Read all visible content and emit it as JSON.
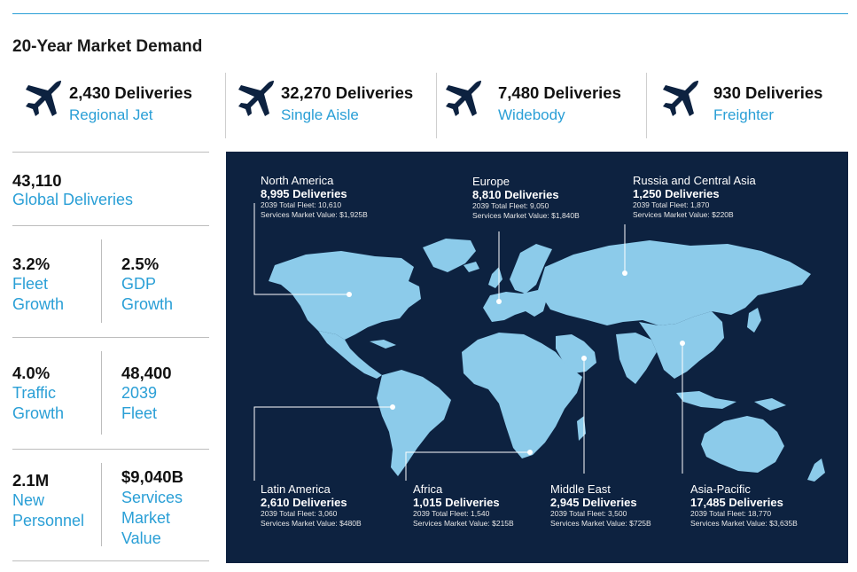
{
  "title": "20-Year Market Demand",
  "categories": [
    {
      "deliveries": "2,430 Deliveries",
      "label": "Regional Jet",
      "icon": "airplane-icon"
    },
    {
      "deliveries": "32,270 Deliveries",
      "label": "Single Aisle",
      "icon": "airplane-icon"
    },
    {
      "deliveries": "7,480 Deliveries",
      "label": "Widebody",
      "icon": "airplane-icon"
    },
    {
      "deliveries": "930 Deliveries",
      "label": "Freighter",
      "icon": "airplane-icon"
    }
  ],
  "stats": {
    "global": {
      "value": "43,110",
      "label": "Global Deliveries"
    },
    "fleet_growth": {
      "value": "3.2%",
      "label": "Fleet\nGrowth"
    },
    "gdp_growth": {
      "value": "2.5%",
      "label": "GDP\nGrowth"
    },
    "traffic_growth": {
      "value": "4.0%",
      "label": "Traffic\nGrowth"
    },
    "fleet_2039": {
      "value": "48,400",
      "label": "2039\nFleet"
    },
    "personnel": {
      "value": "2.1M",
      "label": "New\nPersonnel"
    },
    "services": {
      "value": "$9,040B",
      "label": "Services\nMarket\nValue"
    }
  },
  "regions": {
    "north_america": {
      "name": "North America",
      "deliveries": "8,995 Deliveries",
      "fleet": "2039 Total Fleet: 10,610",
      "services": "Services Market Value: $1,925B"
    },
    "europe": {
      "name": "Europe",
      "deliveries": "8,810 Deliveries",
      "fleet": "2039 Total Fleet: 9,050",
      "services": "Services Market Value: $1,840B"
    },
    "russia": {
      "name": "Russia and Central Asia",
      "deliveries": "1,250 Deliveries",
      "fleet": "2039 Total Fleet: 1,870",
      "services": "Services Market Value: $220B"
    },
    "latin_america": {
      "name": "Latin America",
      "deliveries": "2,610 Deliveries",
      "fleet": "2039 Total Fleet: 3,060",
      "services": "Services Market Value: $480B"
    },
    "africa": {
      "name": "Africa",
      "deliveries": "1,015 Deliveries",
      "fleet": "2039 Total Fleet: 1,540",
      "services": "Services Market Value: $215B"
    },
    "middle_east": {
      "name": "Middle East",
      "deliveries": "2,945 Deliveries",
      "fleet": "2039 Total Fleet: 3,500",
      "services": "Services Market Value: $725B"
    },
    "asia_pacific": {
      "name": "Asia-Pacific",
      "deliveries": "17,485 Deliveries",
      "fleet": "2039 Total Fleet: 18,770",
      "services": "Services Market Value: $3,635B"
    }
  },
  "colors": {
    "accent": "#2a9fd6",
    "map_bg": "#0d2240",
    "land": "#8ccbea",
    "plane": "#0d2240"
  }
}
